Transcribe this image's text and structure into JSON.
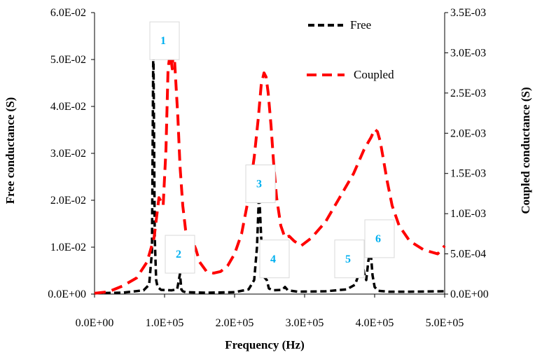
{
  "chart_data": {
    "type": "line",
    "x_axis": {
      "label": "Frequency (Hz)",
      "range": [
        0,
        500000
      ],
      "ticks": [
        0,
        100000,
        200000,
        300000,
        400000,
        500000
      ],
      "tick_labels": [
        "0.0E+00",
        "1.0E+05",
        "2.0E+05",
        "3.0E+05",
        "4.0E+05",
        "5.0E+05"
      ]
    },
    "y_left": {
      "label": "Free conductance (S)",
      "range": [
        0,
        0.06
      ],
      "ticks": [
        0,
        0.01,
        0.02,
        0.03,
        0.04,
        0.05,
        0.06
      ],
      "tick_labels": [
        "0.0E+00",
        "1.0E-02",
        "2.0E-02",
        "3.0E-02",
        "4.0E-02",
        "5.0E-02",
        "6.0E-02"
      ]
    },
    "y_right": {
      "label": "Coupled conductance (S)",
      "range": [
        0,
        0.0035
      ],
      "ticks": [
        0,
        0.0005,
        0.001,
        0.0015,
        0.002,
        0.0025,
        0.003,
        0.0035
      ],
      "tick_labels": [
        "0.0E+00",
        "5.0E-04",
        "1.0E-03",
        "1.5E-03",
        "2.0E-03",
        "2.5E-03",
        "3.0E-03",
        "3.5E-03"
      ]
    },
    "series": [
      {
        "name": "Free",
        "axis": "left",
        "color": "#000000",
        "style": "dashed",
        "x": [
          0,
          40000,
          70000,
          78000,
          82000,
          84000,
          86000,
          88000,
          90000,
          95000,
          110000,
          118000,
          122000,
          124000,
          126000,
          130000,
          160000,
          200000,
          220000,
          228000,
          232000,
          235000,
          238000,
          241000,
          243000,
          246000,
          249000,
          255000,
          268000,
          272000,
          276000,
          290000,
          330000,
          360000,
          372000,
          378000,
          382000,
          385000,
          388000,
          391000,
          394000,
          397000,
          400000,
          405000,
          420000,
          450000,
          500000
        ],
        "y": [
          0.0002,
          0.0003,
          0.0008,
          0.002,
          0.009,
          0.055,
          0.012,
          0.003,
          0.0015,
          0.0009,
          0.0008,
          0.001,
          0.0043,
          0.001,
          0.0006,
          0.0004,
          0.0003,
          0.0004,
          0.001,
          0.003,
          0.01,
          0.022,
          0.012,
          0.005,
          0.0035,
          0.003,
          0.0012,
          0.0008,
          0.0009,
          0.0015,
          0.0008,
          0.0005,
          0.0006,
          0.001,
          0.002,
          0.0045,
          0.007,
          0.0045,
          0.003,
          0.007,
          0.0098,
          0.004,
          0.0015,
          0.0007,
          0.0005,
          0.0005,
          0.0006
        ]
      },
      {
        "name": "Coupled",
        "axis": "right",
        "color": "#ff0000",
        "style": "dashed",
        "x": [
          0,
          20000,
          40000,
          60000,
          75000,
          85000,
          92000,
          98000,
          102000,
          105000,
          108000,
          111000,
          113000,
          115000,
          117000,
          119000,
          122000,
          126000,
          130000,
          135000,
          140000,
          145000,
          150000,
          160000,
          170000,
          180000,
          190000,
          200000,
          210000,
          220000,
          228000,
          234000,
          238000,
          242000,
          245000,
          248000,
          252000,
          256000,
          260000,
          266000,
          272000,
          278000,
          285000,
          295000,
          310000,
          330000,
          350000,
          370000,
          385000,
          395000,
          400000,
          404000,
          408000,
          412000,
          418000,
          425000,
          435000,
          450000,
          470000,
          490000,
          500000
        ],
        "y": [
          1e-05,
          3e-05,
          0.0001,
          0.0002,
          0.0004,
          0.0007,
          0.0012,
          0.0011,
          0.0018,
          0.0028,
          0.003,
          0.0028,
          0.0031,
          0.0028,
          0.0025,
          0.0022,
          0.0016,
          0.0011,
          0.0008,
          0.00062,
          0.00066,
          0.00055,
          0.0004,
          0.00028,
          0.00026,
          0.00028,
          0.00035,
          0.0005,
          0.00075,
          0.0012,
          0.0017,
          0.0022,
          0.0026,
          0.00275,
          0.0027,
          0.0025,
          0.0021,
          0.0016,
          0.0012,
          0.00085,
          0.0007,
          0.00072,
          0.00066,
          0.0006,
          0.0007,
          0.0009,
          0.0012,
          0.0015,
          0.0018,
          0.00195,
          0.00205,
          0.00202,
          0.0019,
          0.0017,
          0.0014,
          0.0011,
          0.00085,
          0.00066,
          0.00055,
          0.0005,
          0.0006
        ]
      }
    ],
    "legend": {
      "position": "top-right",
      "entries": [
        "Free",
        "Coupled"
      ]
    },
    "annotations": [
      {
        "label": "1",
        "x": 100000,
        "y_left": 0.054
      },
      {
        "label": "2",
        "x": 122000,
        "y_left": 0.0085
      },
      {
        "label": "3",
        "x": 237000,
        "y_left": 0.0235
      },
      {
        "label": "4",
        "x": 257000,
        "y_left": 0.0075
      },
      {
        "label": "5",
        "x": 364000,
        "y_left": 0.0075
      },
      {
        "label": "6",
        "x": 407000,
        "y_left": 0.0118
      }
    ]
  },
  "colors": {
    "free": "#000000",
    "coupled": "#ff0000",
    "annotation_text": "#00b0f0"
  }
}
